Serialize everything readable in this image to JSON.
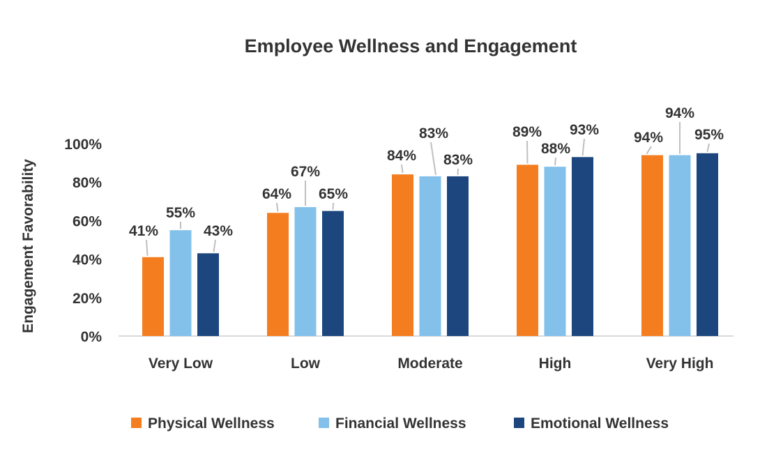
{
  "chart_data": {
    "type": "bar",
    "title": "Employee Wellness and Engagement",
    "xlabel": "",
    "ylabel": "Engagement Favorability",
    "ylim": [
      0,
      100
    ],
    "yticks": [
      "0%",
      "20%",
      "40%",
      "60%",
      "80%",
      "100%"
    ],
    "grid": false,
    "legend": "bottom",
    "categories": [
      "Very Low",
      "Low",
      "Moderate",
      "High",
      "Very High"
    ],
    "series": [
      {
        "name": "Physical Wellness",
        "color": "#F47D20",
        "values": [
          41,
          64,
          84,
          89,
          94
        ],
        "labels": [
          "41%",
          "64%",
          "84%",
          "89%",
          "94%"
        ]
      },
      {
        "name": "Financial Wellness",
        "color": "#83C0EA",
        "values": [
          55,
          67,
          83,
          88,
          94
        ],
        "labels": [
          "55%",
          "67%",
          "83%",
          "88%",
          "94%"
        ]
      },
      {
        "name": "Emotional Wellness",
        "color": "#1C467D",
        "values": [
          43,
          65,
          83,
          93,
          95
        ],
        "labels": [
          "43%",
          "65%",
          "83%",
          "93%",
          "95%"
        ]
      }
    ]
  }
}
